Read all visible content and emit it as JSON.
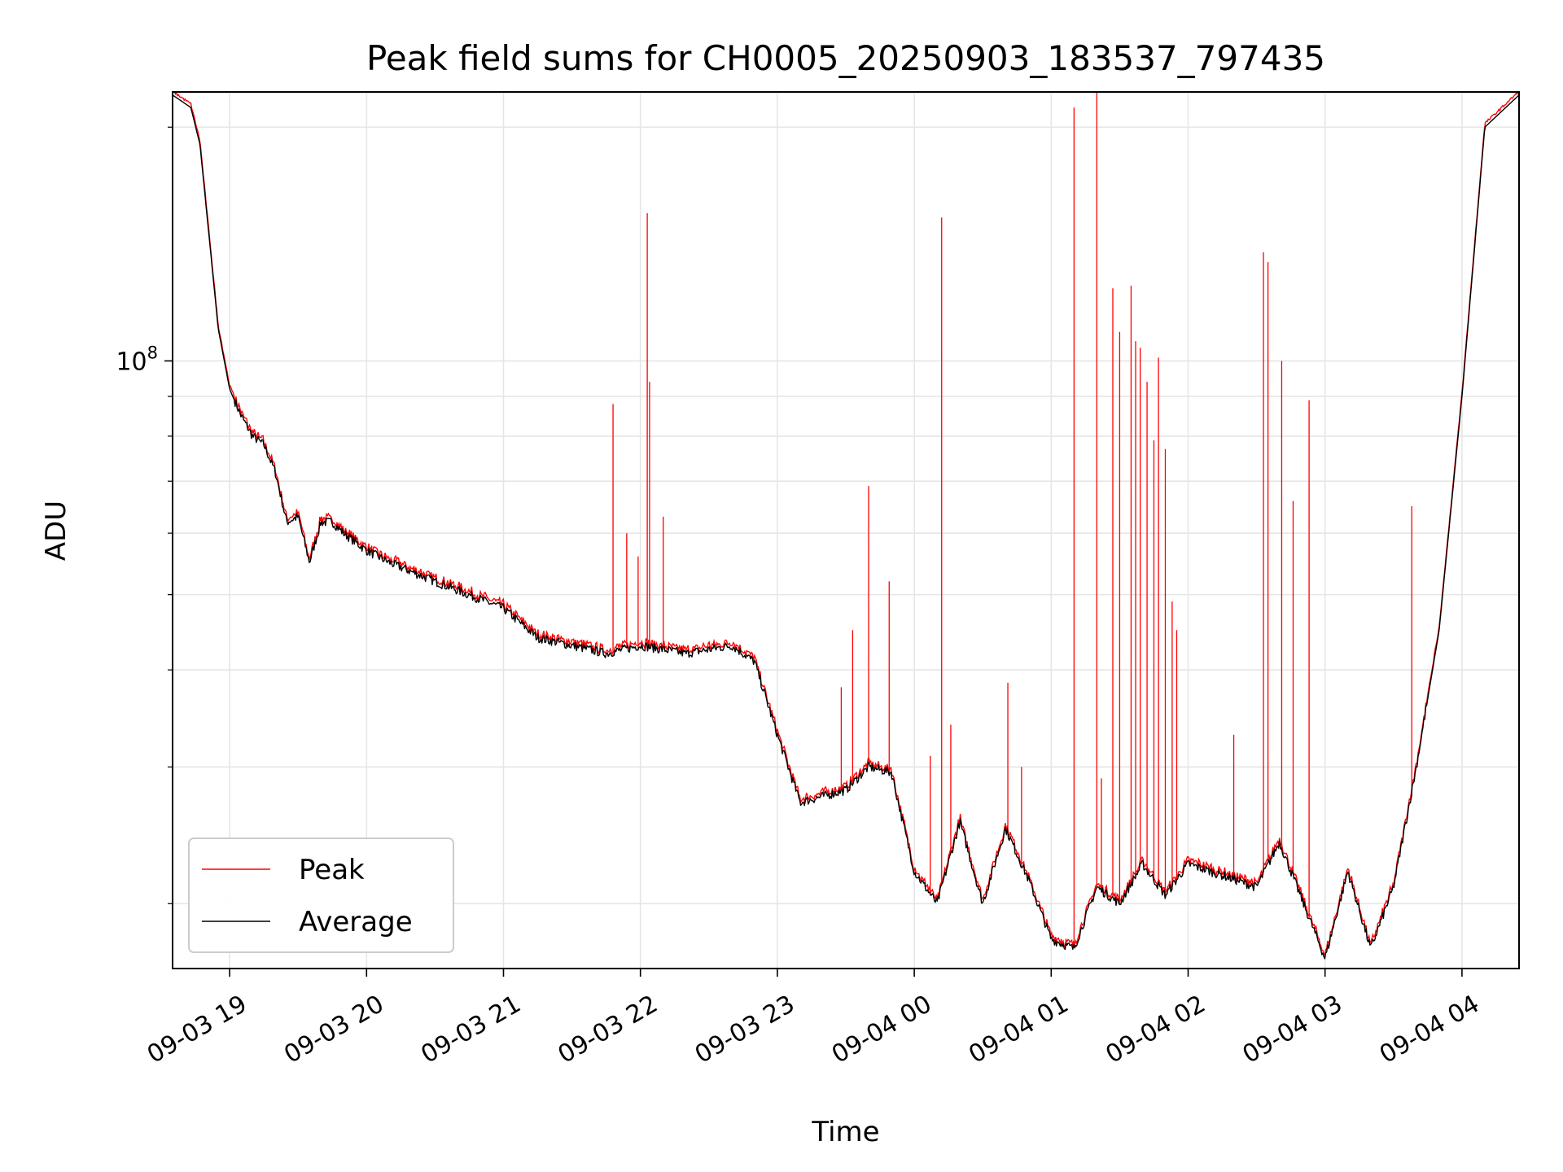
{
  "chart_data": {
    "type": "line",
    "title": "Peak field sums for CH0005_20250903_183537_797435",
    "xlabel": "Time",
    "ylabel": "ADU",
    "yscale": "log",
    "grid": true,
    "legend_position": "lower-left",
    "xlim": [
      "2025-09-03 18:35",
      "2025-09-04 04:25"
    ],
    "ylim": [
      16500000,
      222000000
    ],
    "x_ticks": [
      "09-03 19",
      "09-03 20",
      "09-03 21",
      "09-03 22",
      "09-03 23",
      "09-04 00",
      "09-04 01",
      "09-04 02",
      "09-04 03",
      "09-04 04"
    ],
    "x_tick_values": [
      "2025-09-03 19:00",
      "2025-09-03 20:00",
      "2025-09-03 21:00",
      "2025-09-03 22:00",
      "2025-09-03 23:00",
      "2025-09-04 00:00",
      "2025-09-04 01:00",
      "2025-09-04 02:00",
      "2025-09-04 03:00",
      "2025-09-04 04:00"
    ],
    "y_ticks": [
      {
        "label_base": "10",
        "label_exp": "8",
        "value": 100000000
      }
    ],
    "y_minor_ticks": [
      20000000,
      30000000,
      40000000,
      50000000,
      60000000,
      70000000,
      80000000,
      90000000,
      200000000
    ],
    "series": [
      {
        "name": "Average",
        "color": "#000000",
        "x": [
          "2025-09-03 18:35",
          "2025-09-03 18:43",
          "2025-09-03 18:47",
          "2025-09-03 18:55",
          "2025-09-03 19:00",
          "2025-09-03 19:05",
          "2025-09-03 19:10",
          "2025-09-03 19:15",
          "2025-09-03 19:20",
          "2025-09-03 19:25",
          "2025-09-03 19:30",
          "2025-09-03 19:35",
          "2025-09-03 19:40",
          "2025-09-03 19:45",
          "2025-09-03 19:50",
          "2025-09-03 20:00",
          "2025-09-03 20:10",
          "2025-09-03 20:30",
          "2025-09-03 21:00",
          "2025-09-03 21:15",
          "2025-09-03 21:30",
          "2025-09-03 21:45",
          "2025-09-03 22:00",
          "2025-09-03 22:20",
          "2025-09-03 22:40",
          "2025-09-03 22:50",
          "2025-09-03 23:00",
          "2025-09-03 23:10",
          "2025-09-03 23:20",
          "2025-09-03 23:30",
          "2025-09-03 23:40",
          "2025-09-03 23:50",
          "2025-09-04 00:00",
          "2025-09-04 00:10",
          "2025-09-04 00:20",
          "2025-09-04 00:30",
          "2025-09-04 00:40",
          "2025-09-04 00:50",
          "2025-09-04 01:00",
          "2025-09-04 01:10",
          "2025-09-04 01:20",
          "2025-09-04 01:30",
          "2025-09-04 01:40",
          "2025-09-04 01:50",
          "2025-09-04 02:00",
          "2025-09-04 02:20",
          "2025-09-04 02:30",
          "2025-09-04 02:40",
          "2025-09-04 03:00",
          "2025-09-04 03:10",
          "2025-09-04 03:20",
          "2025-09-04 03:30",
          "2025-09-04 03:40",
          "2025-09-04 03:50",
          "2025-09-04 04:00",
          "2025-09-04 04:10",
          "2025-09-04 04:25"
        ],
        "y": [
          220000000,
          212000000,
          190000000,
          110000000,
          92000000,
          85000000,
          80000000,
          78000000,
          72000000,
          62000000,
          63000000,
          55000000,
          62000000,
          62000000,
          60000000,
          57000000,
          55000000,
          52000000,
          48000000,
          44000000,
          43000000,
          42000000,
          43000000,
          42000000,
          43000000,
          41000000,
          33000000,
          27000000,
          27500000,
          28000000,
          30000000,
          29500000,
          22000000,
          20000000,
          25500000,
          20000000,
          25000000,
          21500000,
          18000000,
          17500000,
          21000000,
          20000000,
          22500000,
          20500000,
          22500000,
          21500000,
          21000000,
          24000000,
          17000000,
          22000000,
          17500000,
          21000000,
          30000000,
          45000000,
          90000000,
          200000000,
          220000000
        ]
      },
      {
        "name": "Peak",
        "color": "#ff0000",
        "spikes": [
          {
            "x": "2025-09-03 21:48",
            "y": 88000000
          },
          {
            "x": "2025-09-03 21:54",
            "y": 60000000
          },
          {
            "x": "2025-09-03 21:59",
            "y": 56000000
          },
          {
            "x": "2025-09-03 22:03",
            "y": 155000000
          },
          {
            "x": "2025-09-03 22:04",
            "y": 94000000
          },
          {
            "x": "2025-09-03 22:10",
            "y": 63000000
          },
          {
            "x": "2025-09-03 23:28",
            "y": 38000000
          },
          {
            "x": "2025-09-03 23:33",
            "y": 45000000
          },
          {
            "x": "2025-09-03 23:40",
            "y": 69000000
          },
          {
            "x": "2025-09-03 23:49",
            "y": 52000000
          },
          {
            "x": "2025-09-04 00:07",
            "y": 31000000
          },
          {
            "x": "2025-09-04 00:12",
            "y": 153000000
          },
          {
            "x": "2025-09-04 00:16",
            "y": 34000000
          },
          {
            "x": "2025-09-04 00:41",
            "y": 38500000
          },
          {
            "x": "2025-09-04 00:47",
            "y": 30000000
          },
          {
            "x": "2025-09-04 01:10",
            "y": 212000000
          },
          {
            "x": "2025-09-04 01:20",
            "y": 222000000
          },
          {
            "x": "2025-09-04 01:22",
            "y": 29000000
          },
          {
            "x": "2025-09-04 01:27",
            "y": 124000000
          },
          {
            "x": "2025-09-04 01:30",
            "y": 109000000
          },
          {
            "x": "2025-09-04 01:35",
            "y": 125000000
          },
          {
            "x": "2025-09-04 01:37",
            "y": 106000000
          },
          {
            "x": "2025-09-04 01:39",
            "y": 104000000
          },
          {
            "x": "2025-09-04 01:42",
            "y": 94000000
          },
          {
            "x": "2025-09-04 01:45",
            "y": 79000000
          },
          {
            "x": "2025-09-04 01:47",
            "y": 101000000
          },
          {
            "x": "2025-09-04 01:50",
            "y": 77000000
          },
          {
            "x": "2025-09-04 01:53",
            "y": 49000000
          },
          {
            "x": "2025-09-04 01:55",
            "y": 45000000
          },
          {
            "x": "2025-09-04 02:20",
            "y": 33000000
          },
          {
            "x": "2025-09-04 02:33",
            "y": 138000000
          },
          {
            "x": "2025-09-04 02:35",
            "y": 134000000
          },
          {
            "x": "2025-09-04 02:41",
            "y": 100000000
          },
          {
            "x": "2025-09-04 02:46",
            "y": 66000000
          },
          {
            "x": "2025-09-04 02:53",
            "y": 89000000
          },
          {
            "x": "2025-09-04 03:38",
            "y": 65000000
          }
        ]
      }
    ]
  }
}
